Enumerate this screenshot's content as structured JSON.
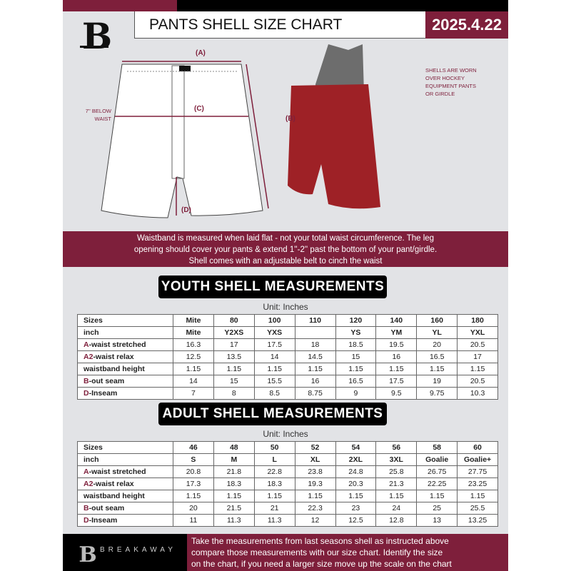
{
  "header": {
    "title": "PANTS SHELL SIZE CHART",
    "date": "2025.4.22",
    "logo_letter": "B"
  },
  "diagram": {
    "label_a": "(A)",
    "label_b": "(B)",
    "label_c": "(C)",
    "label_d": "(D)",
    "below_waist_line1": "7'' BELOW",
    "below_waist_line2": "WAIST",
    "note_lines": [
      "SHELLS ARE WORN",
      "OVER HOCKEY",
      "EQUIPMENT PANTS",
      "OR GIRDLE"
    ]
  },
  "info_band": {
    "lines": [
      "Waistband is measured when laid flat - not your total waist circumference. The leg",
      "opening should cover your pants & extend 1''-2'' past the bottom of your pant/girdle.",
      "Shell comes with an adjustable belt to cinch the waist"
    ]
  },
  "youth": {
    "title": "YOUTH SHELL MEASUREMENTS",
    "unit": "Unit: Inches",
    "rows": [
      {
        "prefix": "",
        "label": "Sizes",
        "cells": [
          "Mite",
          "80",
          "100",
          "110",
          "120",
          "140",
          "160",
          "180"
        ]
      },
      {
        "prefix": "",
        "label": "inch",
        "cells": [
          "Mite",
          "Y2XS",
          "YXS",
          "",
          "YS",
          "YM",
          "YL",
          "YXL"
        ]
      },
      {
        "prefix": "A",
        "label": "-waist stretched",
        "cells": [
          "16.3",
          "17",
          "17.5",
          "18",
          "18.5",
          "19.5",
          "20",
          "20.5"
        ]
      },
      {
        "prefix": "A2",
        "label": "-waist relax",
        "cells": [
          "12.5",
          "13.5",
          "14",
          "14.5",
          "15",
          "16",
          "16.5",
          "17"
        ]
      },
      {
        "prefix": "",
        "label": "waistband height",
        "cells": [
          "1.15",
          "1.15",
          "1.15",
          "1.15",
          "1.15",
          "1.15",
          "1.15",
          "1.15"
        ]
      },
      {
        "prefix": "B",
        "label": "-out seam",
        "cells": [
          "14",
          "15",
          "15.5",
          "16",
          "16.5",
          "17.5",
          "19",
          "20.5"
        ]
      },
      {
        "prefix": "D",
        "label": "-Inseam",
        "cells": [
          "7",
          "8",
          "8.5",
          "8.75",
          "9",
          "9.5",
          "9.75",
          "10.3"
        ]
      }
    ]
  },
  "adult": {
    "title": "ADULT SHELL MEASUREMENTS",
    "unit": "Unit: Inches",
    "rows": [
      {
        "prefix": "",
        "label": "Sizes",
        "cells": [
          "46",
          "48",
          "50",
          "52",
          "54",
          "56",
          "58",
          "60"
        ]
      },
      {
        "prefix": "",
        "label": "inch",
        "cells": [
          "S",
          "M",
          "L",
          "XL",
          "2XL",
          "3XL",
          "Goalie",
          "Goalie+"
        ]
      },
      {
        "prefix": "A",
        "label": "-waist stretched",
        "cells": [
          "20.8",
          "21.8",
          "22.8",
          "23.8",
          "24.8",
          "25.8",
          "26.75",
          "27.75"
        ]
      },
      {
        "prefix": "A2",
        "label": "-waist relax",
        "cells": [
          "17.3",
          "18.3",
          "18.3",
          "19.3",
          "20.3",
          "21.3",
          "22.25",
          "23.25"
        ]
      },
      {
        "prefix": "",
        "label": "waistband height",
        "cells": [
          "1.15",
          "1.15",
          "1.15",
          "1.15",
          "1.15",
          "1.15",
          "1.15",
          "1.15"
        ]
      },
      {
        "prefix": "B",
        "label": "-out seam",
        "cells": [
          "20",
          "21.5",
          "21",
          "22.3",
          "23",
          "24",
          "25",
          "25.5"
        ]
      },
      {
        "prefix": "D",
        "label": "-Inseam",
        "cells": [
          "11",
          "11.3",
          "11.3",
          "12",
          "12.5",
          "12.8",
          "13",
          "13.25"
        ]
      }
    ]
  },
  "footer": {
    "brand": "BREAKAWAY",
    "lines": [
      "Take the measurements from last seasons shell as instructed above",
      "compare those measurements  with our size chart. Identify the size",
      "on the chart, if you need a larger size move up the scale on the chart"
    ]
  },
  "colors": {
    "accent": "#7e1f3b",
    "background": "#e2e3e6"
  }
}
